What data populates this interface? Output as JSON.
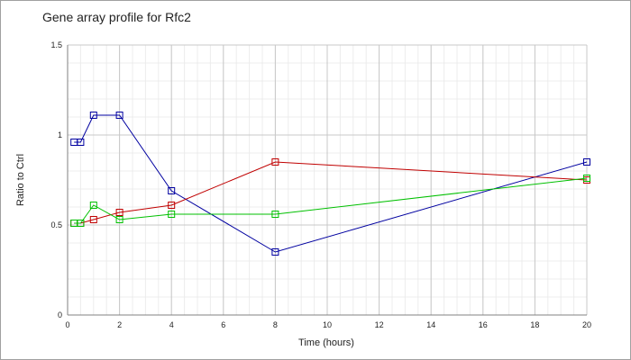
{
  "chart_data": {
    "type": "line",
    "title": "Gene array profile for Rfc2",
    "xlabel": "Time (hours)",
    "ylabel": "Ratio to Ctrl",
    "xlim": [
      0,
      20
    ],
    "ylim": [
      0,
      1.5
    ],
    "x_ticks": [
      0,
      2,
      4,
      6,
      8,
      10,
      12,
      14,
      16,
      18,
      20
    ],
    "x_tick_labels": [
      "0",
      "2",
      "4",
      "6",
      "8",
      "10",
      "12",
      "14",
      "16",
      "18",
      "20"
    ],
    "y_ticks": [
      0,
      0.5,
      1,
      1.5
    ],
    "y_tick_labels": [
      "0",
      "0.5",
      "1",
      "1.5"
    ],
    "grid": true,
    "legend": "none",
    "marker": "square",
    "series": [
      {
        "color": "#0000a0",
        "x": [
          0.25,
          0.5,
          1,
          2,
          4,
          8,
          20
        ],
        "y": [
          0.96,
          0.96,
          1.11,
          1.11,
          0.69,
          0.35,
          0.85
        ]
      },
      {
        "color": "#c00000",
        "x": [
          0.25,
          0.5,
          1,
          2,
          4,
          8,
          20
        ],
        "y": [
          0.51,
          0.51,
          0.53,
          0.57,
          0.61,
          0.85,
          0.75
        ]
      },
      {
        "color": "#00c000",
        "x": [
          0.25,
          0.5,
          1,
          2,
          4,
          8,
          20
        ],
        "y": [
          0.51,
          0.51,
          0.61,
          0.53,
          0.56,
          0.56,
          0.76
        ]
      }
    ]
  }
}
